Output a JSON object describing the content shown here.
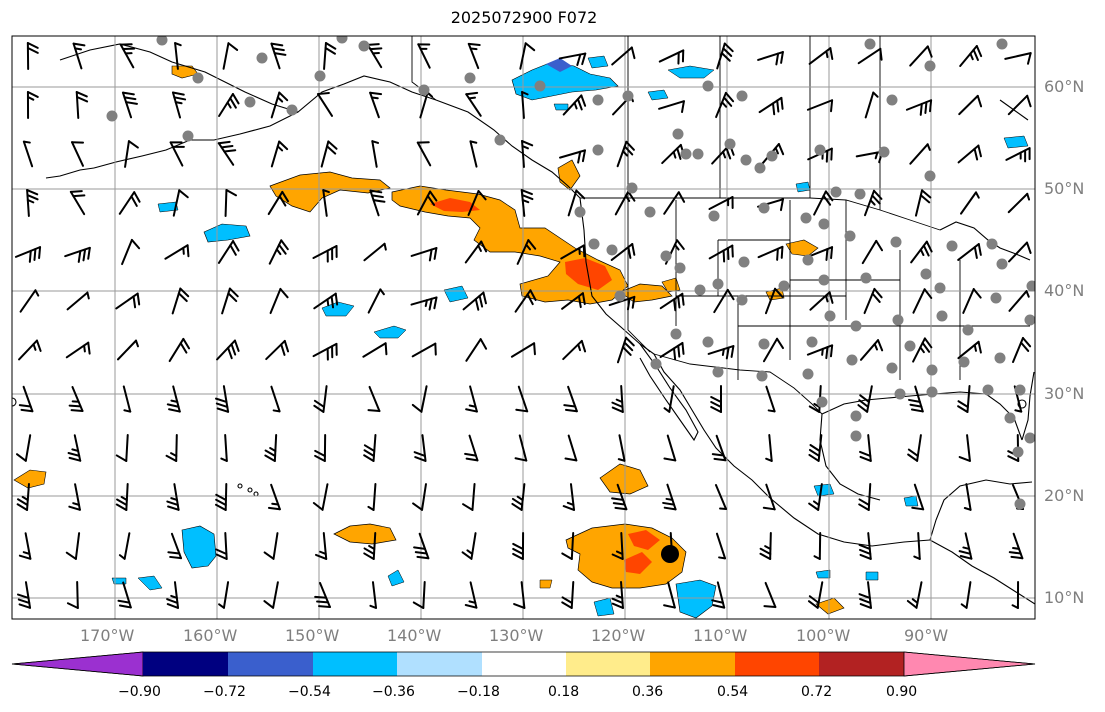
{
  "title": "2025072900 F072",
  "axes": {
    "lon_ticks": [
      "170°W",
      "160°W",
      "150°W",
      "140°W",
      "130°W",
      "120°W",
      "110°W",
      "100°W",
      "90°W"
    ],
    "lat_ticks": [
      "60°N",
      "50°N",
      "40°N",
      "30°N",
      "20°N",
      "10°N"
    ]
  },
  "colorbar": {
    "ticks": [
      "−0.90",
      "−0.72",
      "−0.54",
      "−0.36",
      "−0.18",
      "0.18",
      "0.36",
      "0.54",
      "0.72",
      "0.90"
    ],
    "colors": [
      "#9b30d0",
      "#000080",
      "#3a5fcd",
      "#00bfff",
      "#b0e0ff",
      "#ffffff",
      "#ffec8b",
      "#ffa500",
      "#ff4500",
      "#b22222",
      "#ff88b0"
    ]
  },
  "field_colors": {
    "orange": "#ffa500",
    "red": "#ff4500",
    "light_yellow": "#ffec8b",
    "cyan": "#00bfff",
    "blue": "#3a5fcd",
    "light_blue": "#b0e0ff",
    "station": "#808080"
  }
}
